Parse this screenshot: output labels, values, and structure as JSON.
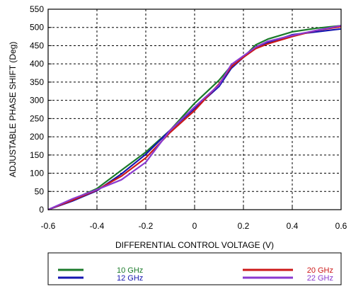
{
  "chart_data": {
    "type": "line",
    "title": "",
    "xlabel": "DIFFERENTIAL CONTROL VOLTAGE (V)",
    "ylabel": "ADJUSTABLE PHASE SHIFT (Deg)",
    "xlim": [
      -0.6,
      0.6
    ],
    "ylim": [
      0,
      550
    ],
    "x_ticks": [
      "-0.6",
      "-0.4",
      "-0.2",
      "0",
      "0.2",
      "0.4",
      "0.6"
    ],
    "y_ticks": [
      "0",
      "50",
      "100",
      "150",
      "200",
      "250",
      "300",
      "350",
      "400",
      "450",
      "500",
      "550"
    ],
    "grid": true,
    "legend_position": "bottom",
    "series": [
      {
        "name": "10 GHz",
        "color": "#1a7a2a",
        "x": [
          -0.6,
          -0.5,
          -0.4,
          -0.3,
          -0.2,
          -0.1,
          0.0,
          0.1,
          0.15,
          0.2,
          0.25,
          0.3,
          0.4,
          0.5,
          0.6
        ],
        "y": [
          0,
          28,
          58,
          108,
          158,
          218,
          292,
          355,
          395,
          418,
          452,
          468,
          488,
          498,
          505
        ]
      },
      {
        "name": "12 GHz",
        "color": "#1616b0",
        "x": [
          -0.6,
          -0.5,
          -0.4,
          -0.3,
          -0.2,
          -0.1,
          0.0,
          0.1,
          0.15,
          0.2,
          0.25,
          0.3,
          0.4,
          0.5,
          0.6
        ],
        "y": [
          0,
          24,
          52,
          98,
          152,
          218,
          278,
          338,
          388,
          418,
          445,
          458,
          480,
          488,
          496
        ]
      },
      {
        "name": "20 GHz",
        "color": "#cc1818",
        "x": [
          -0.6,
          -0.5,
          -0.4,
          -0.3,
          -0.2,
          -0.1,
          0.0,
          0.1,
          0.15,
          0.2,
          0.25,
          0.3,
          0.4,
          0.5,
          0.6
        ],
        "y": [
          0,
          26,
          54,
          92,
          142,
          212,
          272,
          345,
          392,
          418,
          442,
          455,
          475,
          492,
          502
        ]
      },
      {
        "name": "22 GHz",
        "color": "#8a3ad0",
        "x": [
          -0.6,
          -0.5,
          -0.4,
          -0.3,
          -0.2,
          -0.1,
          0.0,
          0.1,
          0.15,
          0.2,
          0.25,
          0.3,
          0.4,
          0.5,
          0.6
        ],
        "y": [
          0,
          30,
          55,
          82,
          130,
          218,
          282,
          342,
          398,
          422,
          446,
          462,
          478,
          492,
          505
        ]
      }
    ]
  }
}
